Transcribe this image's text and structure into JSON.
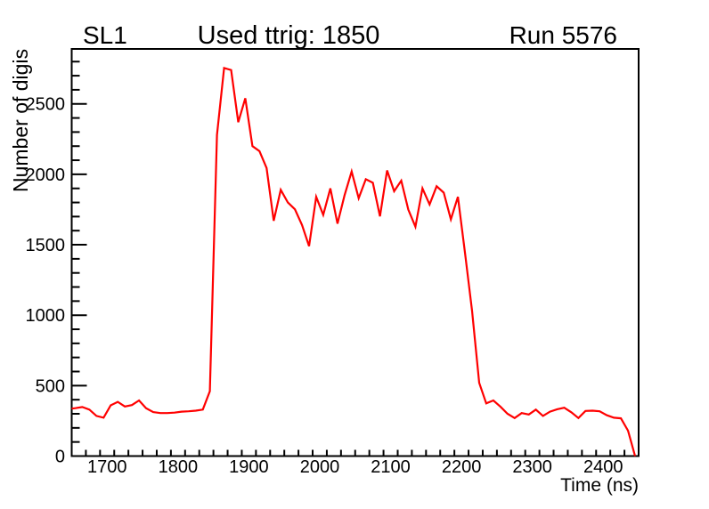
{
  "header": {
    "left_label": "SL1",
    "right_label": "Run 5576"
  },
  "chart_data": {
    "type": "line",
    "title": "Used ttrig: 1850",
    "xlabel": "Time (ns)",
    "ylabel": "Number of digis",
    "xlim": [
      1650,
      2450
    ],
    "ylim": [
      0,
      2890
    ],
    "x_major_ticks": [
      1700,
      1800,
      1900,
      2000,
      2100,
      2200,
      2300,
      2400
    ],
    "x_minor_step": 20,
    "y_major_ticks": [
      0,
      500,
      1000,
      1500,
      2000,
      2500
    ],
    "y_minor_step": 100,
    "grid": false,
    "legend": "none",
    "line_color": "#ff0000",
    "frame_color": "#000000",
    "background_color": "#ffffff",
    "series": [
      {
        "name": "number-of-digis-vs-time",
        "x": [
          1650,
          1655,
          1665,
          1675,
          1685,
          1695,
          1705,
          1715,
          1725,
          1735,
          1745,
          1755,
          1765,
          1775,
          1785,
          1795,
          1805,
          1815,
          1825,
          1835,
          1845,
          1855,
          1865,
          1875,
          1885,
          1895,
          1905,
          1915,
          1925,
          1935,
          1945,
          1955,
          1965,
          1975,
          1985,
          1995,
          2005,
          2015,
          2025,
          2035,
          2045,
          2055,
          2065,
          2075,
          2085,
          2095,
          2105,
          2115,
          2125,
          2135,
          2145,
          2155,
          2165,
          2175,
          2185,
          2195,
          2205,
          2215,
          2225,
          2235,
          2245,
          2255,
          2265,
          2275,
          2285,
          2295,
          2305,
          2315,
          2325,
          2335,
          2345,
          2355,
          2365,
          2375,
          2385,
          2395,
          2405,
          2415,
          2425,
          2435,
          2445
        ],
        "values": [
          337,
          340,
          348,
          330,
          285,
          272,
          360,
          385,
          352,
          362,
          395,
          340,
          312,
          305,
          305,
          308,
          315,
          318,
          322,
          330,
          460,
          2280,
          2755,
          2740,
          2370,
          2540,
          2200,
          2165,
          2045,
          1670,
          1890,
          1800,
          1752,
          1640,
          1490,
          1840,
          1712,
          1900,
          1650,
          1850,
          2020,
          1830,
          1965,
          1940,
          1702,
          2028,
          1880,
          1955,
          1750,
          1628,
          1900,
          1786,
          1915,
          1870,
          1680,
          1840,
          1440,
          1030,
          520,
          374,
          395,
          350,
          300,
          270,
          305,
          295,
          330,
          285,
          315,
          332,
          343,
          311,
          270,
          320,
          322,
          318,
          290,
          272,
          268,
          180,
          0
        ]
      }
    ]
  }
}
